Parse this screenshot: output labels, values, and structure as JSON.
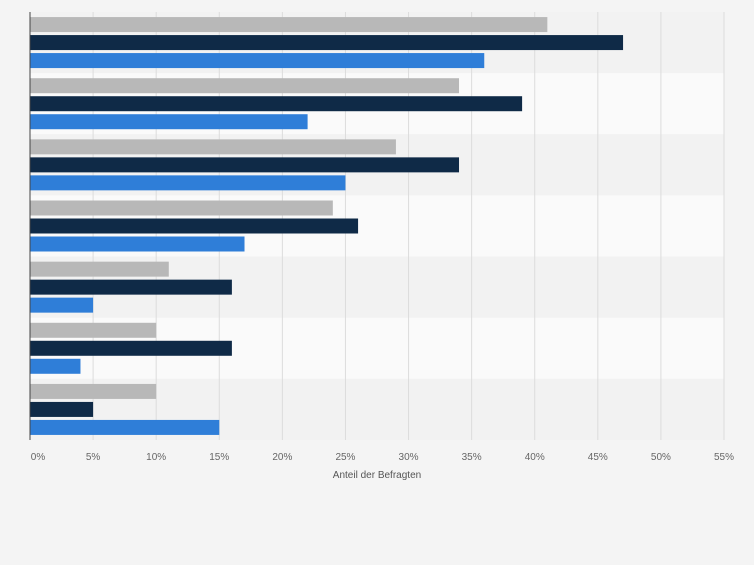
{
  "chart_data": {
    "type": "bar",
    "orientation": "horizontal",
    "categories": [
      "",
      "",
      "",
      "",
      "",
      "",
      ""
    ],
    "series": [
      {
        "color": "#b8b8b8",
        "values": [
          41,
          34,
          29,
          24,
          11,
          10,
          10
        ]
      },
      {
        "color": "#0f2a47",
        "values": [
          47,
          39,
          34,
          26,
          16,
          16,
          5
        ]
      },
      {
        "color": "#2f7ed8",
        "values": [
          36,
          22,
          25,
          17,
          5,
          4,
          15
        ]
      }
    ],
    "xlim": [
      0,
      55
    ],
    "xticks": [
      "0%",
      "5%",
      "10%",
      "15%",
      "20%",
      "25%",
      "30%",
      "35%",
      "40%",
      "45%",
      "50%",
      "55%"
    ],
    "xlabel": "Anteil der Befragten",
    "ylabel": "",
    "title": "",
    "grid": "vertical",
    "legend": "none"
  }
}
